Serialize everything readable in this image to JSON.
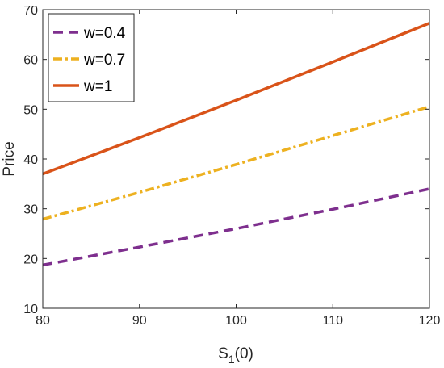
{
  "chart_data": {
    "type": "line",
    "xlabel": "S",
    "xlabel_sub": "1",
    "xlabel_suffix": "(0)",
    "ylabel": "Price",
    "xlim": [
      80,
      120
    ],
    "ylim": [
      10,
      70
    ],
    "xticks": [
      80,
      90,
      100,
      110,
      120
    ],
    "yticks": [
      10,
      20,
      30,
      40,
      50,
      60,
      70
    ],
    "grid": false,
    "legend_position": "top-left",
    "series": [
      {
        "name": "w=0.4",
        "x": [
          80,
          90,
          100,
          110,
          120
        ],
        "y": [
          18.7,
          22.3,
          26.0,
          29.9,
          34.0
        ],
        "color": "#7E2F8E",
        "style": "dashed"
      },
      {
        "name": "w=0.7",
        "x": [
          80,
          90,
          100,
          110,
          120
        ],
        "y": [
          27.9,
          33.3,
          38.9,
          44.7,
          50.5
        ],
        "color": "#EDB120",
        "style": "dashdot"
      },
      {
        "name": "w=1",
        "x": [
          80,
          90,
          100,
          110,
          120
        ],
        "y": [
          37.0,
          44.3,
          51.8,
          59.5,
          67.3
        ],
        "color": "#D95319",
        "style": "solid"
      }
    ]
  }
}
